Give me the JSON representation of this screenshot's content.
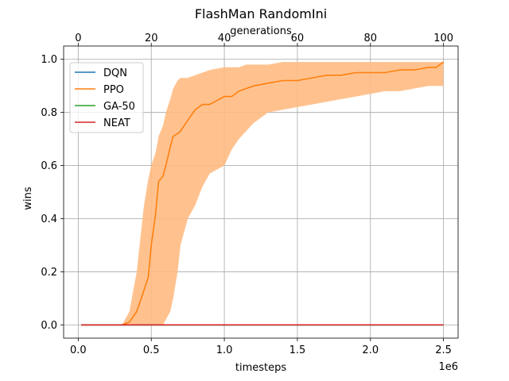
{
  "chart_data": {
    "type": "line",
    "title": "FlashMan RandomIni",
    "xlabel": "timesteps",
    "x_offset_text": "1e6",
    "ylabel": "wins",
    "top_xlabel": "generations",
    "xlim": [
      -0.1,
      2.6
    ],
    "ylim": [
      -0.05,
      1.05
    ],
    "x_ticks": [
      0.0,
      0.5,
      1.0,
      1.5,
      2.0,
      2.5
    ],
    "x_tick_labels": [
      "0.0",
      "0.5",
      "1.0",
      "1.5",
      "2.0",
      "2.5"
    ],
    "y_ticks": [
      0.0,
      0.2,
      0.4,
      0.6,
      0.8,
      1.0
    ],
    "y_tick_labels": [
      "0.0",
      "0.2",
      "0.4",
      "0.6",
      "0.8",
      "1.0"
    ],
    "top_ticks": [
      0,
      20,
      40,
      60,
      80,
      100
    ],
    "top_tick_labels": [
      "0",
      "20",
      "40",
      "60",
      "80",
      "100"
    ],
    "top_xlim": [
      -4,
      104
    ],
    "grid": true,
    "legend_position": "upper-left",
    "series": [
      {
        "name": "DQN",
        "color": "#1f77b4",
        "x": [
          0.02,
          2.5
        ],
        "y": [
          0.0,
          0.0
        ]
      },
      {
        "name": "PPO",
        "color": "#ff7f0e",
        "band_color": "#ffbb83",
        "x": [
          0.02,
          0.3,
          0.35,
          0.4,
          0.45,
          0.48,
          0.5,
          0.53,
          0.55,
          0.58,
          0.6,
          0.63,
          0.65,
          0.68,
          0.7,
          0.75,
          0.8,
          0.85,
          0.9,
          1.0,
          1.05,
          1.1,
          1.15,
          1.2,
          1.3,
          1.4,
          1.5,
          1.6,
          1.7,
          1.8,
          1.9,
          2.0,
          2.1,
          2.2,
          2.3,
          2.4,
          2.45,
          2.5
        ],
        "y": [
          0.0,
          0.0,
          0.01,
          0.05,
          0.13,
          0.18,
          0.3,
          0.42,
          0.54,
          0.56,
          0.6,
          0.67,
          0.71,
          0.72,
          0.73,
          0.77,
          0.81,
          0.83,
          0.83,
          0.86,
          0.86,
          0.88,
          0.89,
          0.9,
          0.91,
          0.92,
          0.92,
          0.93,
          0.94,
          0.94,
          0.95,
          0.95,
          0.95,
          0.96,
          0.96,
          0.97,
          0.97,
          0.99
        ],
        "lower": [
          0.0,
          0.0,
          0.0,
          0.0,
          0.0,
          0.0,
          0.0,
          0.0,
          0.0,
          0.0,
          0.02,
          0.05,
          0.1,
          0.2,
          0.3,
          0.4,
          0.45,
          0.52,
          0.57,
          0.6,
          0.66,
          0.7,
          0.73,
          0.76,
          0.8,
          0.81,
          0.82,
          0.83,
          0.84,
          0.85,
          0.86,
          0.87,
          0.88,
          0.88,
          0.89,
          0.9,
          0.9,
          0.9
        ],
        "upper": [
          0.0,
          0.0,
          0.05,
          0.2,
          0.45,
          0.55,
          0.6,
          0.65,
          0.71,
          0.75,
          0.8,
          0.85,
          0.89,
          0.92,
          0.93,
          0.93,
          0.94,
          0.95,
          0.96,
          0.97,
          0.97,
          0.97,
          0.98,
          0.98,
          0.98,
          0.99,
          0.99,
          0.99,
          0.99,
          0.99,
          0.99,
          0.99,
          0.99,
          0.99,
          0.99,
          0.99,
          0.99,
          0.99
        ]
      },
      {
        "name": "GA-50",
        "color": "#2ca02c",
        "x": [
          0.02,
          2.5
        ],
        "y": [
          0.0,
          0.0
        ]
      },
      {
        "name": "NEAT",
        "color": "#d62728",
        "x": [
          0.02,
          2.5
        ],
        "y": [
          0.0,
          0.0
        ]
      }
    ]
  }
}
